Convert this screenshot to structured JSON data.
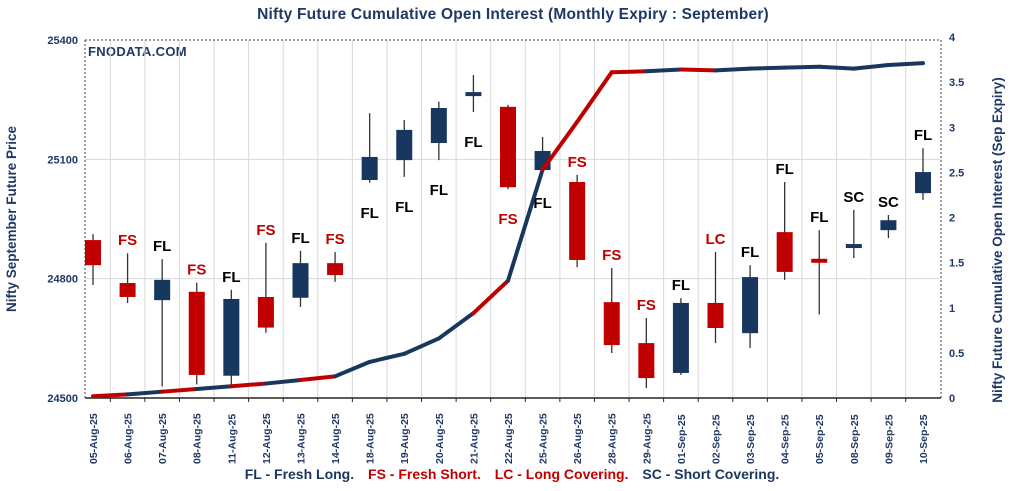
{
  "header": {
    "title": "Nifty Future Cumulative Open Interest (Monthly Expiry : September)",
    "watermark": "FNODATA.COM"
  },
  "colors": {
    "red": "#C00000",
    "navy": "#17375E",
    "text_navy": "#1F3864",
    "label_black": "#000000",
    "grid": "#D9D9D9",
    "border": "#404040",
    "wick": "#333333"
  },
  "left_axis": {
    "title": "Nifty September Future Price",
    "ticks": [
      "25400",
      "25100",
      "24800",
      "24500"
    ],
    "min": 24500,
    "max": 25400
  },
  "right_axis": {
    "title": "Nifty Future Cumulative Open Interest (Sep Expiry)",
    "ticks": [
      "4",
      "3.5",
      "3",
      "2.5",
      "2",
      "1.5",
      "1",
      "0.5",
      "0"
    ],
    "min": 0,
    "max": 4
  },
  "legend": [
    {
      "text": "FL - Fresh Long.",
      "color": "navy"
    },
    {
      "text": "FS - Fresh Short.",
      "color": "red"
    },
    {
      "text": "LC - Long Covering.",
      "color": "red"
    },
    {
      "text": "SC - Short Covering.",
      "color": "navy"
    }
  ],
  "chart_data": {
    "type": "candlestick+line",
    "grid": "on",
    "price_gridlines": [
      25100,
      24800
    ],
    "categories": [
      "05-Aug-25",
      "06-Aug-25",
      "07-Aug-25",
      "08-Aug-25",
      "11-Aug-25",
      "12-Aug-25",
      "13-Aug-25",
      "14-Aug-25",
      "18-Aug-25",
      "19-Aug-25",
      "20-Aug-25",
      "21-Aug-25",
      "22-Aug-25",
      "25-Aug-25",
      "26-Aug-25",
      "28-Aug-25",
      "29-Aug-25",
      "01-Sep-25",
      "02-Sep-25",
      "03-Sep-25",
      "04-Sep-25",
      "05-Sep-25",
      "08-Sep-25",
      "09-Sep-25",
      "10-Sep-25"
    ],
    "candles": [
      {
        "date": "05-Aug-25",
        "open": 24897,
        "high": 24912,
        "low": 24784,
        "close": 24834,
        "color": "red",
        "label": "",
        "label_color": "",
        "label_pos": "above"
      },
      {
        "date": "06-Aug-25",
        "open": 24789,
        "high": 24864,
        "low": 24739,
        "close": 24754,
        "color": "red",
        "label": "FS",
        "label_color": "red",
        "label_pos": "above"
      },
      {
        "date": "07-Aug-25",
        "open": 24746,
        "high": 24849,
        "low": 24529,
        "close": 24797,
        "color": "navy",
        "label": "FL",
        "label_color": "black",
        "label_pos": "above"
      },
      {
        "date": "08-Aug-25",
        "open": 24767,
        "high": 24790,
        "low": 24534,
        "close": 24558,
        "color": "red",
        "label": "FS",
        "label_color": "red",
        "label_pos": "above"
      },
      {
        "date": "11-Aug-25",
        "open": 24556,
        "high": 24772,
        "low": 24529,
        "close": 24749,
        "color": "navy",
        "label": "FL",
        "label_color": "black",
        "label_pos": "above"
      },
      {
        "date": "12-Aug-25",
        "open": 24754,
        "high": 24890,
        "low": 24664,
        "close": 24677,
        "color": "red",
        "label": "FS",
        "label_color": "red",
        "label_pos": "above"
      },
      {
        "date": "13-Aug-25",
        "open": 24752,
        "high": 24870,
        "low": 24729,
        "close": 24839,
        "color": "navy",
        "label": "FL",
        "label_color": "black",
        "label_pos": "above"
      },
      {
        "date": "14-Aug-25",
        "open": 24839,
        "high": 24867,
        "low": 24792,
        "close": 24809,
        "color": "red",
        "label": "FS",
        "label_color": "red",
        "label_pos": "above"
      },
      {
        "date": "18-Aug-25",
        "open": 25048,
        "high": 25216,
        "low": 25041,
        "close": 25106,
        "color": "navy",
        "label": "FL",
        "label_color": "black",
        "label_pos": "below"
      },
      {
        "date": "19-Aug-25",
        "open": 25098,
        "high": 25199,
        "low": 25056,
        "close": 25174,
        "color": "navy",
        "label": "FL",
        "label_color": "black",
        "label_pos": "below"
      },
      {
        "date": "20-Aug-25",
        "open": 25141,
        "high": 25245,
        "low": 25098,
        "close": 25229,
        "color": "navy",
        "label": "FL",
        "label_color": "black",
        "label_pos": "below"
      },
      {
        "date": "21-Aug-25",
        "open": 25261,
        "high": 25312,
        "low": 25219,
        "close": 25264,
        "color": "navy",
        "label": "FL",
        "label_color": "black",
        "label_pos": "below"
      },
      {
        "date": "22-Aug-25",
        "open": 25232,
        "high": 25237,
        "low": 25025,
        "close": 25030,
        "color": "red",
        "label": "FS",
        "label_color": "red",
        "label_pos": "below"
      },
      {
        "date": "25-Aug-25",
        "open": 25073,
        "high": 25156,
        "low": 25066,
        "close": 25121,
        "color": "navy",
        "label": "FL",
        "label_color": "black",
        "label_pos": "below"
      },
      {
        "date": "26-Aug-25",
        "open": 25043,
        "high": 25061,
        "low": 24829,
        "close": 24847,
        "color": "red",
        "label": "FS",
        "label_color": "red",
        "label_pos": "above"
      },
      {
        "date": "28-Aug-25",
        "open": 24741,
        "high": 24827,
        "low": 24613,
        "close": 24633,
        "color": "red",
        "label": "FS",
        "label_color": "red",
        "label_pos": "above"
      },
      {
        "date": "29-Aug-25",
        "open": 24638,
        "high": 24701,
        "low": 24525,
        "close": 24550,
        "color": "red",
        "label": "FS",
        "label_color": "red",
        "label_pos": "above"
      },
      {
        "date": "01-Sep-25",
        "open": 24563,
        "high": 24751,
        "low": 24558,
        "close": 24739,
        "color": "navy",
        "label": "FL",
        "label_color": "black",
        "label_pos": "above"
      },
      {
        "date": "02-Sep-25",
        "open": 24739,
        "high": 24867,
        "low": 24638,
        "close": 24676,
        "color": "red",
        "label": "LC",
        "label_color": "red",
        "label_pos": "above"
      },
      {
        "date": "03-Sep-25",
        "open": 24663,
        "high": 24834,
        "low": 24626,
        "close": 24804,
        "color": "navy",
        "label": "FL",
        "label_color": "black",
        "label_pos": "above"
      },
      {
        "date": "04-Sep-25",
        "open": 24917,
        "high": 25043,
        "low": 24797,
        "close": 24817,
        "color": "red",
        "label": "FL",
        "label_color": "black",
        "label_pos": "above"
      },
      {
        "date": "05-Sep-25",
        "open": 24845,
        "high": 24922,
        "low": 24710,
        "close": 24840,
        "color": "red",
        "label": "FL",
        "label_color": "black",
        "label_pos": "above"
      },
      {
        "date": "08-Sep-25",
        "open": 24882,
        "high": 24973,
        "low": 24852,
        "close": 24878,
        "color": "navy",
        "label": "SC",
        "label_color": "black",
        "label_pos": "above"
      },
      {
        "date": "09-Sep-25",
        "open": 24922,
        "high": 24960,
        "low": 24902,
        "close": 24947,
        "color": "navy",
        "label": "SC",
        "label_color": "black",
        "label_pos": "above"
      },
      {
        "date": "10-Sep-25",
        "open": 25015,
        "high": 25128,
        "low": 24998,
        "close": 25068,
        "color": "navy",
        "label": "FL",
        "label_color": "black",
        "label_pos": "above"
      }
    ],
    "oi_line": {
      "name": "Cumulative Open Interest (Sep Expiry)",
      "values": [
        0.02,
        0.04,
        0.07,
        0.1,
        0.13,
        0.16,
        0.2,
        0.24,
        0.4,
        0.49,
        0.66,
        0.94,
        1.3,
        2.53,
        3.06,
        3.61,
        3.62,
        3.64,
        3.63,
        3.65,
        3.66,
        3.67,
        3.65,
        3.69,
        3.71
      ],
      "segment_colors": [
        "red",
        "navy",
        "red",
        "navy",
        "red",
        "navy",
        "red",
        "navy",
        "navy",
        "navy",
        "navy",
        "red",
        "navy",
        "red",
        "red",
        "red",
        "navy",
        "red",
        "navy",
        "navy",
        "navy",
        "navy",
        "navy",
        "navy"
      ]
    }
  }
}
